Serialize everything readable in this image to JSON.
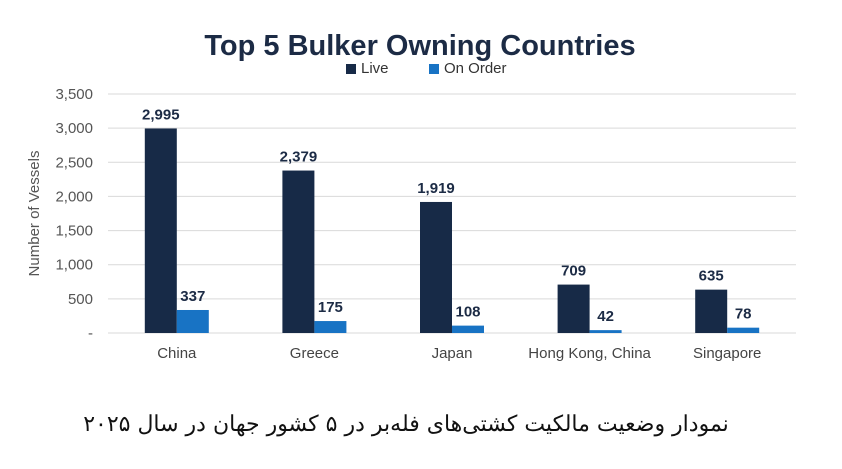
{
  "chart_data": {
    "type": "bar",
    "title": "Top 5 Bulker Owning Countries",
    "xlabel": "",
    "ylabel": "Number of Vessels",
    "categories": [
      "China",
      "Greece",
      "Japan",
      "Hong Kong, China",
      "Singapore"
    ],
    "series": [
      {
        "name": "Live",
        "color": "#172a47",
        "values": [
          2995,
          2379,
          1919,
          709,
          635
        ]
      },
      {
        "name": "On Order",
        "color": "#1873c4",
        "values": [
          337,
          175,
          108,
          42,
          78
        ]
      }
    ],
    "value_labels": {
      "Live": [
        "2,995",
        "2,379",
        "1,919",
        "709",
        "635"
      ],
      "On Order": [
        "337",
        "175",
        "108",
        "42",
        "78"
      ]
    },
    "ylim": [
      0,
      3500
    ],
    "yticks": [
      0,
      500,
      1000,
      1500,
      2000,
      2500,
      3000,
      3500
    ],
    "ytick_labels": [
      "-",
      "500",
      "1,000",
      "1,500",
      "2,000",
      "2,500",
      "3,000",
      "3,500"
    ],
    "grid": true,
    "legend_position": "top-center"
  },
  "caption": "نمودار وضعیت مالکیت کشتی‌های فله‌بر در ۵ کشور جهان در سال ۲۰۲۵"
}
